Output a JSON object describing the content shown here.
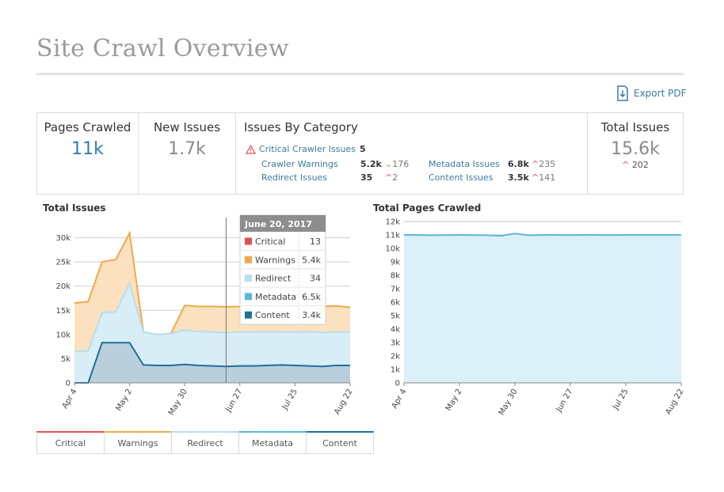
{
  "page": {
    "title": "Site Crawl Overview",
    "export_label": "Export PDF"
  },
  "stats": {
    "pages_crawled": {
      "label": "Pages Crawled",
      "value": "11k"
    },
    "new_issues": {
      "label": "New Issues",
      "value": "1.7k"
    },
    "issues_by_category": {
      "label": "Issues By Category",
      "critical": {
        "label": "Critical Crawler Issues",
        "value": "5"
      },
      "rows": [
        {
          "label": "Crawler Warnings",
          "value": "5.2k",
          "dir": "down",
          "change": "176"
        },
        {
          "label": "Redirect Issues",
          "value": "35",
          "dir": "up",
          "change": "2"
        },
        {
          "label": "Metadata Issues",
          "value": "6.8k",
          "dir": "up",
          "change": "235"
        },
        {
          "label": "Content Issues",
          "value": "3.5k",
          "dir": "up",
          "change": "141"
        }
      ]
    },
    "total_issues": {
      "label": "Total Issues",
      "value": "15.6k",
      "change": "202"
    }
  },
  "colors": {
    "critical": "#d9534f",
    "warnings": "#f0a848",
    "redirect": "#b7dfee",
    "metadata": "#5bb7d8",
    "content": "#1f6f99",
    "link": "#3c7aa1",
    "area": "#dbeff8"
  },
  "chart_data": [
    {
      "type": "area",
      "title": "Total Issues",
      "x": [
        "Apr 4",
        "Apr 11",
        "Apr 18",
        "Apr 25",
        "May 2",
        "May 9",
        "May 16",
        "May 23",
        "May 30",
        "Jun 6",
        "Jun 13",
        "Jun 20",
        "Jun 27",
        "Jul 4",
        "Jul 11",
        "Jul 18",
        "Jul 25",
        "Aug 1",
        "Aug 8",
        "Aug 15",
        "Aug 22"
      ],
      "x_ticks": [
        "Apr 4",
        "May 2",
        "May 30",
        "Jun 27",
        "Jul 25",
        "Aug 22"
      ],
      "ylim": [
        0,
        35000
      ],
      "y_ticks": [
        "0",
        "5k",
        "10k",
        "15k",
        "20k",
        "25k",
        "30k"
      ],
      "y_tick_values": [
        0,
        5000,
        10000,
        15000,
        20000,
        25000,
        30000
      ],
      "series": [
        {
          "name": "Warnings",
          "color": "#f0a848",
          "values": [
            16500,
            16800,
            25000,
            25500,
            31000,
            10500,
            10000,
            10200,
            16000,
            15800,
            15800,
            15700,
            15800,
            15900,
            16000,
            16000,
            15900,
            16000,
            15800,
            15900,
            15600
          ]
        },
        {
          "name": "Redirect",
          "color": "#b7dfee",
          "values": [
            6500,
            6600,
            14500,
            14700,
            20500,
            10500,
            10000,
            10200,
            10900,
            10600,
            10500,
            10400,
            10500,
            10500,
            10600,
            10500,
            10500,
            10600,
            10400,
            10500,
            10500
          ]
        },
        {
          "name": "Content",
          "color": "#1f6f99",
          "values": [
            0,
            0,
            8300,
            8300,
            8300,
            3700,
            3600,
            3600,
            3800,
            3600,
            3500,
            3400,
            3500,
            3500,
            3600,
            3700,
            3600,
            3500,
            3400,
            3600,
            3600
          ]
        }
      ],
      "tooltip": {
        "date": "June 20, 2017",
        "rows": [
          {
            "name": "Critical",
            "value": "13",
            "color": "#d9534f"
          },
          {
            "name": "Warnings",
            "value": "5.4k",
            "color": "#f0a848"
          },
          {
            "name": "Redirect",
            "value": "34",
            "color": "#b7dfee"
          },
          {
            "name": "Metadata",
            "value": "6.5k",
            "color": "#5bb7d8"
          },
          {
            "name": "Content",
            "value": "3.4k",
            "color": "#1f6f99"
          }
        ]
      },
      "legend": [
        "Critical",
        "Warnings",
        "Redirect",
        "Metadata",
        "Content"
      ]
    },
    {
      "type": "area",
      "title": "Total Pages Crawled",
      "x": [
        "Apr 4",
        "Apr 11",
        "Apr 18",
        "Apr 25",
        "May 2",
        "May 9",
        "May 16",
        "May 23",
        "May 30",
        "Jun 6",
        "Jun 13",
        "Jun 20",
        "Jun 27",
        "Jul 4",
        "Jul 11",
        "Jul 18",
        "Jul 25",
        "Aug 1",
        "Aug 8",
        "Aug 15",
        "Aug 22"
      ],
      "x_ticks": [
        "Apr 4",
        "May 2",
        "May 30",
        "Jun 27",
        "Jul 25",
        "Aug 22"
      ],
      "ylim": [
        0,
        12000
      ],
      "y_ticks": [
        "0",
        "1k",
        "2k",
        "3k",
        "4k",
        "5k",
        "6k",
        "7k",
        "8k",
        "9k",
        "10k",
        "11k",
        "12k"
      ],
      "y_tick_values": [
        0,
        1000,
        2000,
        3000,
        4000,
        5000,
        6000,
        7000,
        8000,
        9000,
        10000,
        11000,
        12000
      ],
      "series": [
        {
          "name": "",
          "color": "#5bb7d8",
          "values": [
            11000,
            11000,
            10980,
            10990,
            11000,
            10990,
            10980,
            10930,
            11100,
            10980,
            11000,
            11000,
            10990,
            11000,
            11000,
            10990,
            11000,
            11000,
            11000,
            11000,
            11000
          ]
        }
      ]
    }
  ]
}
